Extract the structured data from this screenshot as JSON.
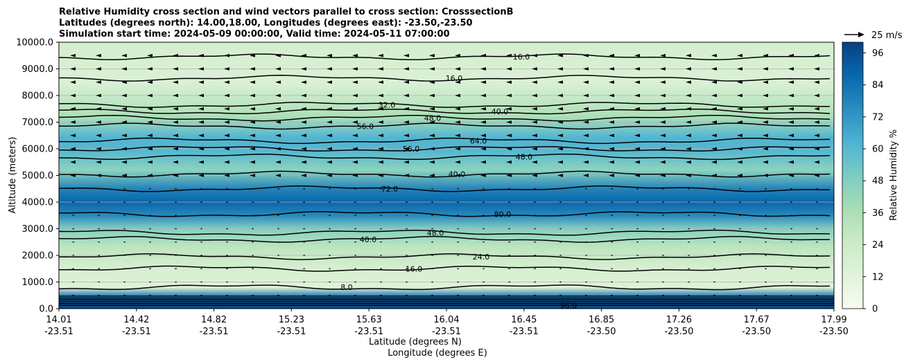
{
  "title_lines": [
    "Relative Humidity cross section and wind vectors parallel to cross section: CrosssectionB",
    "Latitudes (degrees north): 14.00,18.00, Longitudes (degrees east): -23.50,-23.50",
    "Simulation start time: 2024-05-09 00:00:00, Valid time: 2024-05-11 07:00:00"
  ],
  "chart_data": {
    "type": "heatmap",
    "xlabel_lat": "Latitude (degrees N)",
    "xlabel_lon": "Longitude (degrees E)",
    "ylabel": "Altitude (meters)",
    "xlim": [
      14.01,
      17.99
    ],
    "ylim": [
      0,
      10000
    ],
    "x_ticks": [
      {
        "lat": "14.01",
        "lon": "-23.51"
      },
      {
        "lat": "14.42",
        "lon": "-23.51"
      },
      {
        "lat": "14.82",
        "lon": "-23.51"
      },
      {
        "lat": "15.23",
        "lon": "-23.51"
      },
      {
        "lat": "15.63",
        "lon": "-23.51"
      },
      {
        "lat": "16.04",
        "lon": "-23.51"
      },
      {
        "lat": "16.45",
        "lon": "-23.51"
      },
      {
        "lat": "16.85",
        "lon": "-23.50"
      },
      {
        "lat": "17.26",
        "lon": "-23.50"
      },
      {
        "lat": "17.67",
        "lon": "-23.50"
      },
      {
        "lat": "17.99",
        "lon": "-23.50"
      }
    ],
    "y_ticks": [
      "0.0",
      "1000.0",
      "2000.0",
      "3000.0",
      "4000.0",
      "5000.0",
      "6000.0",
      "7000.0",
      "8000.0",
      "9000.0",
      "10000.0"
    ],
    "y_tick_values": [
      0,
      1000,
      2000,
      3000,
      4000,
      5000,
      6000,
      7000,
      8000,
      9000,
      10000
    ],
    "grid": "horizontal",
    "colorbar": {
      "label": "Relative Humidity %",
      "ticks": [
        "0",
        "12",
        "24",
        "36",
        "48",
        "60",
        "72",
        "84",
        "96"
      ],
      "tick_values": [
        0,
        12,
        24,
        36,
        48,
        60,
        72,
        84,
        96
      ],
      "range": [
        0,
        100
      ],
      "colormap": [
        "#f7fcf0",
        "#e0f3db",
        "#ccebc5",
        "#a8ddb5",
        "#7bccc4",
        "#4eb3d3",
        "#2b8cbe",
        "#0868ac",
        "#084081"
      ]
    },
    "quiver_key_label": "25 m/s",
    "humidity_profile": [
      {
        "altitude": 0,
        "rh": 97
      },
      {
        "altitude": 400,
        "rh": 90
      },
      {
        "altitude": 800,
        "rh": 14
      },
      {
        "altitude": 1500,
        "rh": 18
      },
      {
        "altitude": 2300,
        "rh": 30
      },
      {
        "altitude": 3000,
        "rh": 48
      },
      {
        "altitude": 3500,
        "rh": 76
      },
      {
        "altitude": 4000,
        "rh": 88
      },
      {
        "altitude": 4500,
        "rh": 78
      },
      {
        "altitude": 5200,
        "rh": 45
      },
      {
        "altitude": 5900,
        "rh": 60
      },
      {
        "altitude": 6400,
        "rh": 62
      },
      {
        "altitude": 7200,
        "rh": 36
      },
      {
        "altitude": 8500,
        "rh": 16
      },
      {
        "altitude": 10000,
        "rh": 20
      }
    ],
    "contours": [
      {
        "altitude": 800,
        "label": "8.0"
      },
      {
        "altitude": 1500,
        "label": "16.0"
      },
      {
        "altitude": 1950,
        "label": "24.0"
      },
      {
        "altitude": 2600,
        "label": "40.0"
      },
      {
        "altitude": 2850,
        "label": "48.0"
      },
      {
        "altitude": 3550,
        "label": "80.0"
      },
      {
        "altitude": 4500,
        "label": "72.0"
      },
      {
        "altitude": 5050,
        "label": "40.0"
      },
      {
        "altitude": 5700,
        "label": "48.0"
      },
      {
        "altitude": 6000,
        "label": "56.0"
      },
      {
        "altitude": 6300,
        "label": "64.0"
      },
      {
        "altitude": 6850,
        "label": "56.0"
      },
      {
        "altitude": 7150,
        "label": "48.0"
      },
      {
        "altitude": 7400,
        "label": "40.0"
      },
      {
        "altitude": 7650,
        "label": "32.0"
      },
      {
        "altitude": 8650,
        "label": "16.0"
      },
      {
        "altitude": 9450,
        "label": "16.0"
      }
    ],
    "surface_label": "96.0"
  }
}
